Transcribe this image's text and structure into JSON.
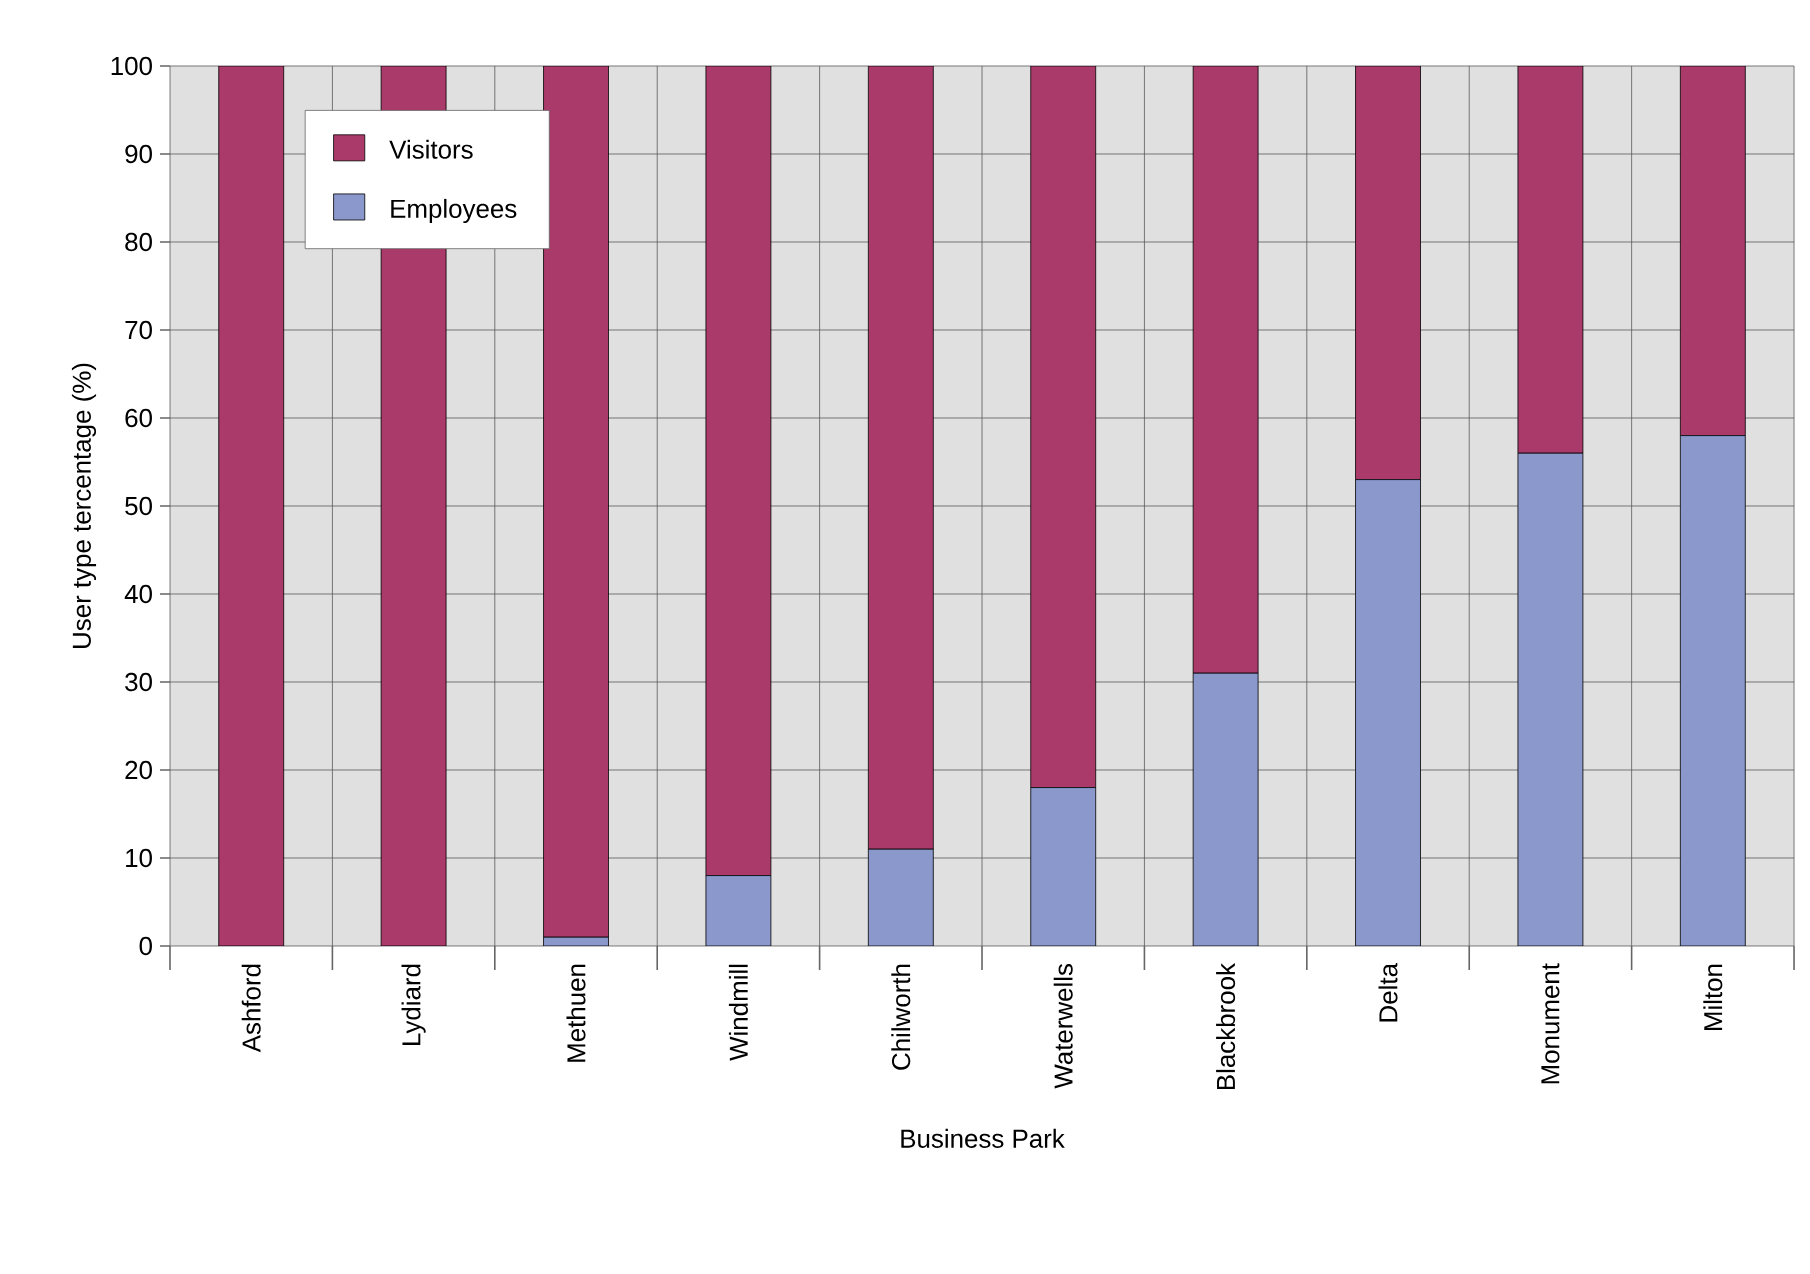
{
  "chart_data": {
    "type": "bar",
    "stacked": true,
    "xlabel": "Business Park",
    "ylabel": "User type tercentage (%)",
    "categories": [
      "Ashford",
      "Lydiard",
      "Methuen",
      "Windmill",
      "Chilworth",
      "Waterwells",
      "Blackbrook",
      "Delta",
      "Monument",
      "Milton"
    ],
    "series": [
      {
        "name": "Employees",
        "color": "#8a98cc",
        "values": [
          0,
          0,
          1,
          8,
          11,
          18,
          31,
          53,
          56,
          58
        ]
      },
      {
        "name": "Visitors",
        "color": "#aa3a6a",
        "values": [
          100,
          100,
          99,
          92,
          89,
          82,
          69,
          47,
          44,
          42
        ]
      }
    ],
    "ylim": [
      0,
      100
    ],
    "yticks": [
      0,
      10,
      20,
      30,
      40,
      50,
      60,
      70,
      80,
      90,
      100
    ],
    "grid": true,
    "legend": "top left"
  }
}
